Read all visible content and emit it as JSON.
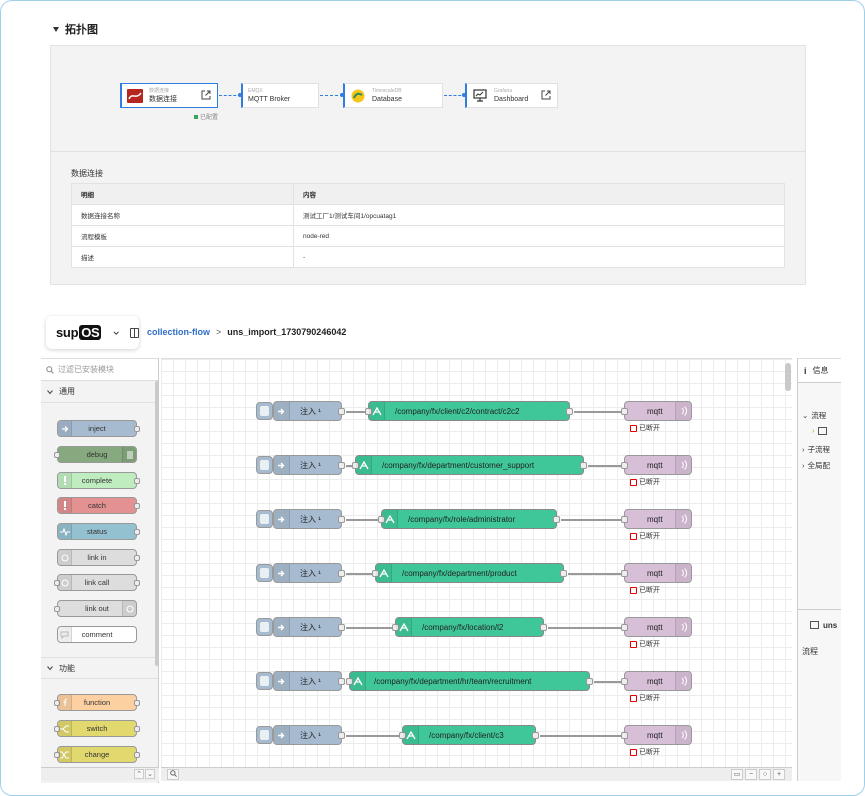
{
  "topology": {
    "section_title": "拓扑图",
    "nodes": [
      {
        "sub": "数据连接",
        "main": "数据连接"
      },
      {
        "sub": "EMQX",
        "main": "MQTT Broker"
      },
      {
        "sub": "TimescaleDB",
        "main": "Database"
      },
      {
        "sub": "Grafana",
        "main": "Dashboard"
      }
    ],
    "status": "已配置"
  },
  "details": {
    "title": "数据连接",
    "headers": [
      "明细",
      "内容"
    ],
    "rows": [
      [
        "数据连接名称",
        "测试工厂1/测试车间1/opcuatag1"
      ],
      [
        "流程模板",
        "node-red"
      ],
      [
        "描述",
        "-"
      ]
    ]
  },
  "nodered": {
    "logo_text": "sup",
    "logo_badge": "OS",
    "breadcrumb": {
      "parent": "collection-flow",
      "separator": ">",
      "current": "uns_import_1730790246042"
    },
    "palette": {
      "filter_placeholder": "过滤已安装模块",
      "categories": [
        "通用",
        "功能"
      ],
      "common_nodes": [
        "inject",
        "debug",
        "complete",
        "catch",
        "status",
        "link in",
        "link call",
        "link out",
        "comment"
      ],
      "function_nodes": [
        "function",
        "switch",
        "change"
      ]
    },
    "flows": [
      {
        "inject": "注入 ¹",
        "topic": "/company/fx/client/c2/contract/c2c2",
        "out": "mqtt",
        "status": "已断开"
      },
      {
        "inject": "注入 ¹",
        "topic": "/company/fx/department/customer_support",
        "out": "mqtt",
        "status": "已断开"
      },
      {
        "inject": "注入 ¹",
        "topic": "/company/fx/role/administrator",
        "out": "mqtt",
        "status": "已断开"
      },
      {
        "inject": "注入 ¹",
        "topic": "/company/fx/department/product",
        "out": "mqtt",
        "status": "已断开"
      },
      {
        "inject": "注入 ¹",
        "topic": "/company/fx/location/l2",
        "out": "mqtt",
        "status": "已断开"
      },
      {
        "inject": "注入 ¹",
        "topic": "/company/fx/department/hr/team/recruitment",
        "out": "mqtt",
        "status": "已断开"
      },
      {
        "inject": "注入 ¹",
        "topic": "/company/fx/client/c3",
        "out": "mqtt",
        "status": "已断开"
      }
    ],
    "sidebar": {
      "tab_label": "信息",
      "items": [
        "流程",
        "子流程",
        "全局配"
      ],
      "section2_title": "uns",
      "footer_label": "流程"
    }
  },
  "colors": {
    "accent": "#2f7de1",
    "inject": "#a6bbcf",
    "topic": "#3fc79a",
    "mqtt": "#d8bfd8",
    "error": "#dd0000"
  }
}
